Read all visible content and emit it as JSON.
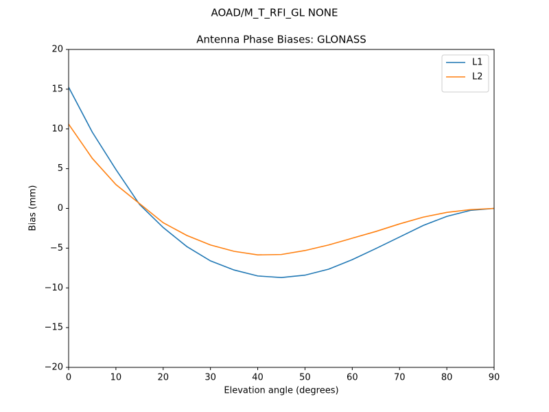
{
  "chart_data": {
    "type": "line",
    "suptitle": "AOAD/M_T_RFI_GL NONE",
    "title": "Antenna Phase Biases: GLONASS",
    "xlabel": "Elevation angle (degrees)",
    "ylabel": "Bias (mm)",
    "x": [
      0,
      5,
      10,
      15,
      20,
      25,
      30,
      35,
      40,
      45,
      50,
      55,
      60,
      65,
      70,
      75,
      80,
      85,
      90
    ],
    "series": [
      {
        "name": "L1",
        "color": "#1f77b4",
        "values": [
          15.25,
          9.6,
          4.9,
          0.5,
          -2.4,
          -4.8,
          -6.6,
          -7.75,
          -8.5,
          -8.7,
          -8.4,
          -7.65,
          -6.45,
          -5.05,
          -3.6,
          -2.15,
          -1.0,
          -0.25,
          0
        ]
      },
      {
        "name": "L2",
        "color": "#ff7f0e",
        "values": [
          10.6,
          6.3,
          3.0,
          0.6,
          -1.8,
          -3.4,
          -4.6,
          -5.4,
          -5.85,
          -5.8,
          -5.3,
          -4.6,
          -3.75,
          -2.9,
          -1.95,
          -1.1,
          -0.5,
          -0.15,
          0
        ]
      }
    ],
    "xlim": [
      0,
      90
    ],
    "xticks": [
      0,
      10,
      20,
      30,
      40,
      50,
      60,
      70,
      80,
      90
    ],
    "ylim": [
      -20,
      20
    ],
    "yticks": [
      {
        "value": -20,
        "label": "−20"
      },
      {
        "value": -15,
        "label": "−15"
      },
      {
        "value": -10,
        "label": "−10"
      },
      {
        "value": -5,
        "label": "−5"
      },
      0,
      5,
      10,
      15,
      20
    ],
    "legend": "upper right",
    "grid": false
  }
}
